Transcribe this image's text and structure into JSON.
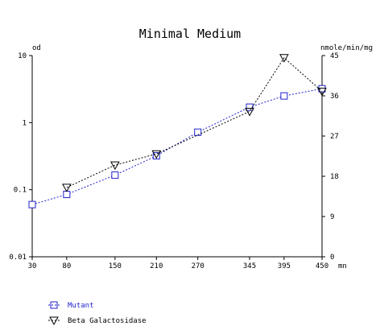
{
  "chart_data": {
    "type": "line",
    "title": "Minimal Medium",
    "left_axis_label": "od",
    "right_axis_label": "nmole/min/mg",
    "x_unit_label": "mn",
    "x_ticks": [
      30,
      80,
      150,
      210,
      270,
      345,
      395,
      450
    ],
    "x_range": [
      30,
      450
    ],
    "left_axis": {
      "scale": "log",
      "range": [
        0.01,
        10
      ],
      "ticks": [
        "0.01",
        "0.1",
        "1",
        "10"
      ],
      "tick_values": [
        0.01,
        0.1,
        1,
        10
      ]
    },
    "right_axis": {
      "scale": "linear",
      "range": [
        0,
        45
      ],
      "ticks": [
        "0",
        "9",
        "18",
        "27",
        "36",
        "45"
      ],
      "tick_values": [
        0,
        9,
        18,
        27,
        36,
        45
      ]
    },
    "grid": false,
    "legend_position": "bottom-left",
    "series": [
      {
        "name": "Mutant",
        "axis": "left",
        "marker": "square",
        "color": "#2222cc",
        "x": [
          30,
          80,
          150,
          210,
          270,
          345,
          395,
          450
        ],
        "y": [
          0.06,
          0.085,
          0.165,
          0.32,
          0.72,
          1.7,
          2.5,
          3.2
        ]
      },
      {
        "name": "Beta Galactosidase",
        "axis": "right",
        "marker": "triangle-down",
        "color": "#000000",
        "x": [
          80,
          150,
          210,
          345,
          395,
          450
        ],
        "y": [
          15.5,
          20.5,
          23,
          32.5,
          44.5,
          37
        ]
      }
    ]
  }
}
